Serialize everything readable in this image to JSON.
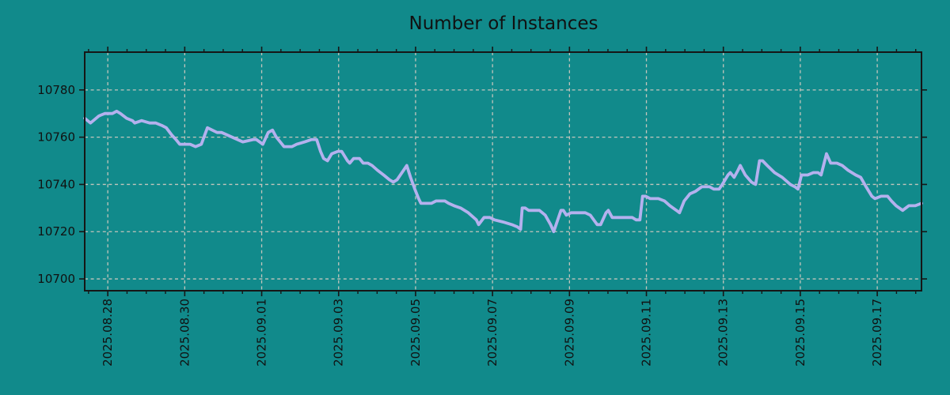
{
  "title": "Number of Instances",
  "colors": {
    "background": "#118a8b",
    "line": "#b4b1ee",
    "grid": "#c3c5bc",
    "axis": "#161616",
    "text": "#111111"
  },
  "chart_data": {
    "type": "line",
    "title": "Number of Instances",
    "xlabel": "",
    "ylabel": "",
    "x_unit": "days since 2025-08-28 00:00",
    "xlim": [
      -0.6,
      21.15
    ],
    "ylim": [
      10695,
      10796
    ],
    "grid": true,
    "legend": "none",
    "y_ticks": [
      10700,
      10720,
      10740,
      10760,
      10780
    ],
    "x_ticks": [
      {
        "t": 0,
        "label": "2025.08.28"
      },
      {
        "t": 2,
        "label": "2025.08.30"
      },
      {
        "t": 4,
        "label": "2025.09.01"
      },
      {
        "t": 6,
        "label": "2025.09.03"
      },
      {
        "t": 8,
        "label": "2025.09.05"
      },
      {
        "t": 10,
        "label": "2025.09.07"
      },
      {
        "t": 12,
        "label": "2025.09.09"
      },
      {
        "t": 14,
        "label": "2025.09.11"
      },
      {
        "t": 16,
        "label": "2025.09.13"
      },
      {
        "t": 18,
        "label": "2025.09.15"
      },
      {
        "t": 20,
        "label": "2025.09.17"
      }
    ],
    "x_minor_step": 0.5,
    "series": [
      {
        "name": "instances",
        "points": [
          [
            -0.6,
            10768
          ],
          [
            -0.45,
            10766
          ],
          [
            -0.23,
            10769
          ],
          [
            -0.08,
            10770
          ],
          [
            0.12,
            10770
          ],
          [
            0.23,
            10771
          ],
          [
            0.33,
            10770
          ],
          [
            0.49,
            10768
          ],
          [
            0.64,
            10767
          ],
          [
            0.7,
            10766
          ],
          [
            0.88,
            10767
          ],
          [
            1.09,
            10766
          ],
          [
            1.25,
            10766
          ],
          [
            1.4,
            10765
          ],
          [
            1.52,
            10764
          ],
          [
            1.66,
            10761
          ],
          [
            1.77,
            10759
          ],
          [
            1.87,
            10757
          ],
          [
            2.14,
            10757
          ],
          [
            2.28,
            10756
          ],
          [
            2.43,
            10757
          ],
          [
            2.59,
            10764
          ],
          [
            2.84,
            10762
          ],
          [
            2.96,
            10762
          ],
          [
            3.1,
            10761
          ],
          [
            3.37,
            10759
          ],
          [
            3.51,
            10758
          ],
          [
            3.78,
            10759
          ],
          [
            3.86,
            10759
          ],
          [
            4.03,
            10757
          ],
          [
            4.17,
            10762
          ],
          [
            4.28,
            10763
          ],
          [
            4.38,
            10760
          ],
          [
            4.48,
            10758
          ],
          [
            4.58,
            10756
          ],
          [
            4.79,
            10756
          ],
          [
            4.91,
            10757
          ],
          [
            5.12,
            10758
          ],
          [
            5.3,
            10759
          ],
          [
            5.43,
            10759
          ],
          [
            5.53,
            10754
          ],
          [
            5.61,
            10751
          ],
          [
            5.71,
            10750
          ],
          [
            5.82,
            10753
          ],
          [
            5.98,
            10754
          ],
          [
            6.08,
            10754
          ],
          [
            6.23,
            10750
          ],
          [
            6.29,
            10749
          ],
          [
            6.39,
            10751
          ],
          [
            6.54,
            10751
          ],
          [
            6.64,
            10749
          ],
          [
            6.76,
            10749
          ],
          [
            6.87,
            10748
          ],
          [
            7.01,
            10746
          ],
          [
            7.17,
            10744
          ],
          [
            7.32,
            10742
          ],
          [
            7.42,
            10741
          ],
          [
            7.52,
            10742
          ],
          [
            7.73,
            10747
          ],
          [
            7.77,
            10748
          ],
          [
            7.87,
            10743
          ],
          [
            7.98,
            10738
          ],
          [
            8.08,
            10734
          ],
          [
            8.14,
            10732
          ],
          [
            8.41,
            10732
          ],
          [
            8.53,
            10733
          ],
          [
            8.76,
            10733
          ],
          [
            8.86,
            10732
          ],
          [
            9.0,
            10731
          ],
          [
            9.17,
            10730
          ],
          [
            9.37,
            10728
          ],
          [
            9.58,
            10725
          ],
          [
            9.64,
            10723
          ],
          [
            9.78,
            10726
          ],
          [
            9.93,
            10726
          ],
          [
            10.05,
            10725
          ],
          [
            10.3,
            10724
          ],
          [
            10.5,
            10723
          ],
          [
            10.65,
            10722
          ],
          [
            10.73,
            10721
          ],
          [
            10.77,
            10730
          ],
          [
            10.85,
            10730
          ],
          [
            10.94,
            10729
          ],
          [
            11.08,
            10729
          ],
          [
            11.22,
            10729
          ],
          [
            11.37,
            10727
          ],
          [
            11.51,
            10723
          ],
          [
            11.59,
            10720
          ],
          [
            11.78,
            10729
          ],
          [
            11.84,
            10729
          ],
          [
            11.92,
            10727
          ],
          [
            12.04,
            10728
          ],
          [
            12.21,
            10728
          ],
          [
            12.41,
            10728
          ],
          [
            12.54,
            10727
          ],
          [
            12.72,
            10723
          ],
          [
            12.81,
            10723
          ],
          [
            12.95,
            10728
          ],
          [
            13.01,
            10729
          ],
          [
            13.11,
            10726
          ],
          [
            13.28,
            10726
          ],
          [
            13.48,
            10726
          ],
          [
            13.63,
            10726
          ],
          [
            13.73,
            10725
          ],
          [
            13.83,
            10725
          ],
          [
            13.9,
            10735
          ],
          [
            13.98,
            10735
          ],
          [
            14.1,
            10734
          ],
          [
            14.31,
            10734
          ],
          [
            14.47,
            10733
          ],
          [
            14.61,
            10731
          ],
          [
            14.78,
            10729
          ],
          [
            14.86,
            10728
          ],
          [
            14.98,
            10733
          ],
          [
            15.13,
            10736
          ],
          [
            15.27,
            10737
          ],
          [
            15.44,
            10739
          ],
          [
            15.64,
            10739
          ],
          [
            15.75,
            10738
          ],
          [
            15.89,
            10738
          ],
          [
            16.01,
            10741
          ],
          [
            16.12,
            10744
          ],
          [
            16.18,
            10745
          ],
          [
            16.28,
            10743
          ],
          [
            16.38,
            10746
          ],
          [
            16.44,
            10748
          ],
          [
            16.57,
            10744
          ],
          [
            16.73,
            10741
          ],
          [
            16.84,
            10740
          ],
          [
            16.94,
            10750
          ],
          [
            17.02,
            10750
          ],
          [
            17.14,
            10748
          ],
          [
            17.33,
            10745
          ],
          [
            17.53,
            10743
          ],
          [
            17.74,
            10740
          ],
          [
            17.86,
            10739
          ],
          [
            17.94,
            10738
          ],
          [
            18.03,
            10744
          ],
          [
            18.19,
            10744
          ],
          [
            18.34,
            10745
          ],
          [
            18.46,
            10745
          ],
          [
            18.54,
            10744
          ],
          [
            18.68,
            10753
          ],
          [
            18.79,
            10749
          ],
          [
            18.95,
            10749
          ],
          [
            19.09,
            10748
          ],
          [
            19.24,
            10746
          ],
          [
            19.44,
            10744
          ],
          [
            19.57,
            10743
          ],
          [
            19.71,
            10739
          ],
          [
            19.86,
            10735
          ],
          [
            19.94,
            10734
          ],
          [
            20.1,
            10735
          ],
          [
            20.27,
            10735
          ],
          [
            20.37,
            10733
          ],
          [
            20.49,
            10731
          ],
          [
            20.66,
            10729
          ],
          [
            20.82,
            10731
          ],
          [
            20.99,
            10731
          ],
          [
            21.15,
            10732
          ]
        ]
      }
    ]
  }
}
